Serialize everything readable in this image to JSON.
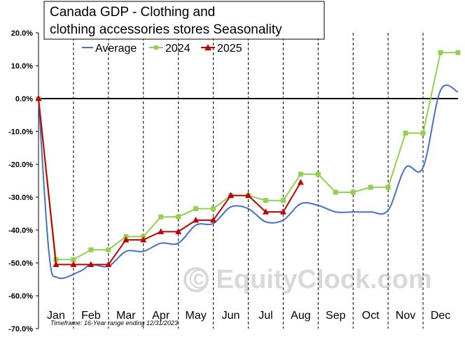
{
  "chart_data": {
    "type": "line",
    "title_line1": "Canada GDP - Clothing and",
    "title_line2": "clothing accessories stores Seasonality",
    "ylim": [
      -70,
      20
    ],
    "yticks": [
      20,
      10,
      0,
      -10,
      -20,
      -30,
      -40,
      -50,
      -60,
      -70
    ],
    "ytick_labels": [
      "20.0%",
      "10.0%",
      "0.0%",
      "-10.0%",
      "-20.0%",
      "-30.0%",
      "-40.0%",
      "-50.0%",
      "-60.0%",
      "-70.0%"
    ],
    "months": [
      "Jan",
      "Feb",
      "Mar",
      "Apr",
      "May",
      "Jun",
      "Jul",
      "Aug",
      "Sep",
      "Oct",
      "Nov",
      "Dec"
    ],
    "legend_placement": "top",
    "grid": "vertical dashed month separators",
    "series": [
      {
        "name": "Average",
        "color": "#4472c4",
        "marker": "none",
        "points": [
          [
            0,
            0
          ],
          [
            0.3,
            -47
          ],
          [
            0.55,
            -54.5
          ],
          [
            1.2,
            -52.5
          ],
          [
            1.5,
            -50.5
          ],
          [
            2.0,
            -51
          ],
          [
            2.5,
            -46.5
          ],
          [
            3.0,
            -46.5
          ],
          [
            3.5,
            -44
          ],
          [
            4.0,
            -44
          ],
          [
            4.5,
            -38.5
          ],
          [
            5.0,
            -38
          ],
          [
            5.5,
            -33
          ],
          [
            6.0,
            -33.5
          ],
          [
            6.5,
            -37.5
          ],
          [
            7.0,
            -37
          ],
          [
            7.5,
            -32
          ],
          [
            8.0,
            -32.5
          ],
          [
            8.5,
            -34.5
          ],
          [
            9.0,
            -34.5
          ],
          [
            9.5,
            -34.5
          ],
          [
            10.0,
            -34
          ],
          [
            10.5,
            -21
          ],
          [
            11.0,
            -21
          ],
          [
            11.5,
            2.5
          ],
          [
            12.0,
            2
          ]
        ]
      },
      {
        "name": "2024",
        "color": "#92d050",
        "marker": "square",
        "points": [
          [
            0,
            0
          ],
          [
            0.5,
            -49
          ],
          [
            1.0,
            -49
          ],
          [
            1.5,
            -46
          ],
          [
            2.0,
            -46
          ],
          [
            2.5,
            -42
          ],
          [
            3.0,
            -42
          ],
          [
            3.5,
            -36
          ],
          [
            4.0,
            -36
          ],
          [
            4.5,
            -33.5
          ],
          [
            5.0,
            -33.5
          ],
          [
            5.5,
            -29.5
          ],
          [
            6.0,
            -29.5
          ],
          [
            6.5,
            -31
          ],
          [
            7.0,
            -31
          ],
          [
            7.5,
            -23
          ],
          [
            8.0,
            -23
          ],
          [
            8.5,
            -28.5
          ],
          [
            9.0,
            -28.5
          ],
          [
            9.5,
            -27
          ],
          [
            10.0,
            -27
          ],
          [
            10.5,
            -10.5
          ],
          [
            11.0,
            -10.5
          ],
          [
            11.5,
            14
          ],
          [
            12.0,
            14
          ]
        ]
      },
      {
        "name": "2025",
        "color": "#c00000",
        "marker": "triangle",
        "points": [
          [
            0,
            0
          ],
          [
            0.5,
            -50.5
          ],
          [
            1.0,
            -50.5
          ],
          [
            1.5,
            -50.5
          ],
          [
            2.0,
            -50.5
          ],
          [
            2.5,
            -43
          ],
          [
            3.0,
            -43
          ],
          [
            3.5,
            -40.5
          ],
          [
            4.0,
            -40.5
          ],
          [
            4.5,
            -37
          ],
          [
            5.0,
            -37
          ],
          [
            5.5,
            -29.5
          ],
          [
            6.0,
            -29.5
          ],
          [
            6.5,
            -34.5
          ],
          [
            7.0,
            -34.5
          ],
          [
            7.5,
            -25.5
          ]
        ]
      }
    ],
    "footnote": "Timeframe: 16-Year range ending 12/31/2023",
    "watermark": "© EquityClock.com"
  }
}
